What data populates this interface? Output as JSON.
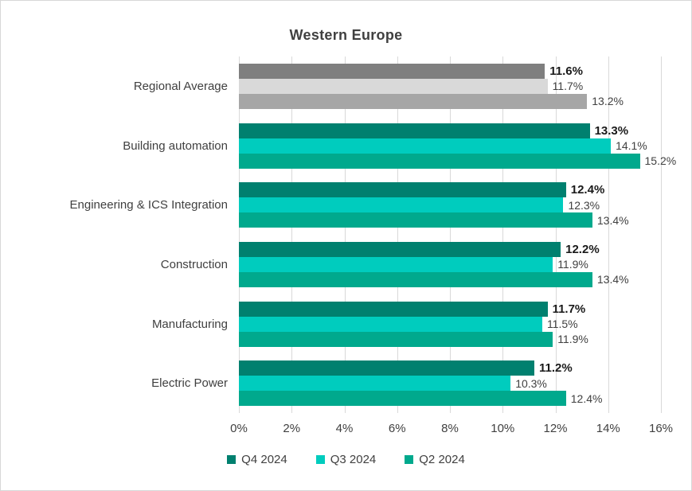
{
  "chart_data": {
    "type": "bar",
    "orientation": "horizontal",
    "title": "Western Europe",
    "categories": [
      "Regional Average",
      "Building automation",
      "Engineering & ICS Integration",
      "Construction",
      "Manufacturing",
      "Electric Power"
    ],
    "series": [
      {
        "name": "Q4 2024",
        "color": "#00806F",
        "average_color": "#7F7F7F",
        "bold_labels": true,
        "values": [
          11.6,
          13.3,
          12.4,
          12.2,
          11.7,
          11.2
        ]
      },
      {
        "name": "Q3 2024",
        "color": "#00CCBE",
        "average_color": "#D9D9D9",
        "bold_labels": false,
        "values": [
          11.7,
          14.1,
          12.3,
          11.9,
          11.5,
          10.3
        ]
      },
      {
        "name": "Q2 2024",
        "color": "#00A98D",
        "average_color": "#A6A6A6",
        "bold_labels": false,
        "values": [
          13.2,
          15.2,
          13.4,
          13.4,
          11.9,
          12.4
        ]
      }
    ],
    "average_category_index": 0,
    "xlim": [
      0,
      16
    ],
    "x_tick_labels": [
      "0%",
      "2%",
      "4%",
      "6%",
      "8%",
      "10%",
      "12%",
      "14%",
      "16%"
    ],
    "value_suffix": "%",
    "grid": true,
    "legend_position": "bottom"
  }
}
